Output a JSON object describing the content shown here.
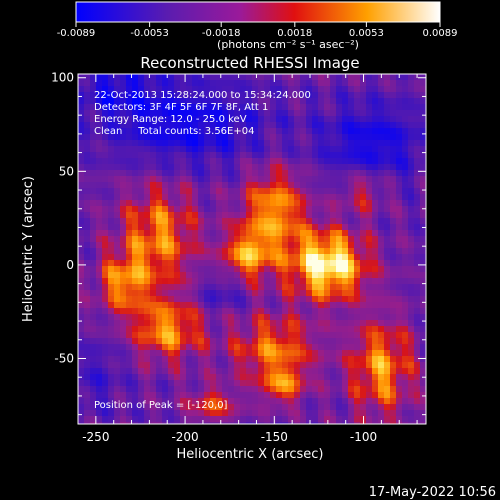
{
  "colorbar": {
    "ticks": [
      "-0.0089",
      "-0.0053",
      "-0.0018",
      "0.0018",
      "0.0053",
      "0.0089"
    ],
    "unit_label": "(photons cm⁻² s⁻¹ asec⁻²)"
  },
  "footer": {
    "timestamp": "17-May-2022 10:56"
  },
  "chart_data": {
    "type": "heatmap",
    "title": "Reconstructed RHESSI Image",
    "xlabel": "Heliocentric X (arcsec)",
    "ylabel": "Heliocentric Y (arcsec)",
    "xlim": [
      -260,
      -65
    ],
    "ylim": [
      -85,
      102
    ],
    "xticks": [
      -250,
      -200,
      -150,
      -100
    ],
    "yticks": [
      -50,
      0,
      50,
      100
    ],
    "colorscale": {
      "min": -0.0089,
      "max": 0.0089,
      "colors": [
        "#0000ff",
        "#7a1fb0",
        "#d11818",
        "#ffa500",
        "#ffffff"
      ]
    },
    "peak": {
      "x": -120,
      "y": 0
    },
    "annotations": [
      "22-Oct-2013 15:28:24.000 to 15:34:24.000",
      "Detectors: 3F 4F 5F 6F 7F 8F, Att 1",
      "Energy Range: 12.0 - 25.0 keV",
      "Clean     Total counts: 3.56E+04",
      "Position of Peak = [-120,0]"
    ]
  }
}
